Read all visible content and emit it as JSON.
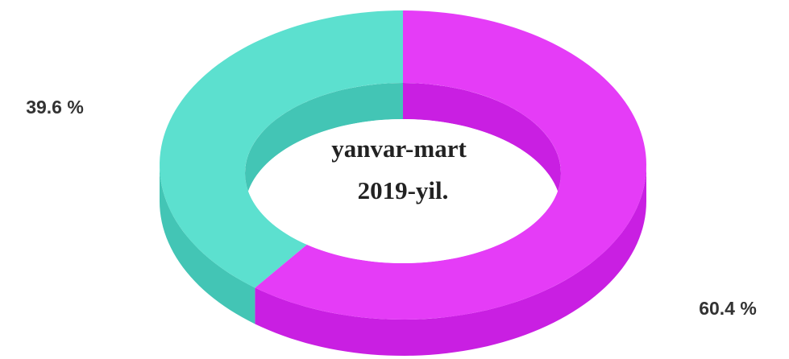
{
  "chart_data": {
    "type": "donut3d",
    "values": [
      60.4,
      39.6
    ],
    "value_labels": [
      "60.4 %",
      "39.6 %"
    ],
    "colors": [
      "#e53cf7",
      "#5ce0cf"
    ],
    "side_colors": [
      "#c91fe2",
      "#43c5b5"
    ],
    "center_label": [
      "yanvar-mart",
      "2019-yil."
    ]
  }
}
